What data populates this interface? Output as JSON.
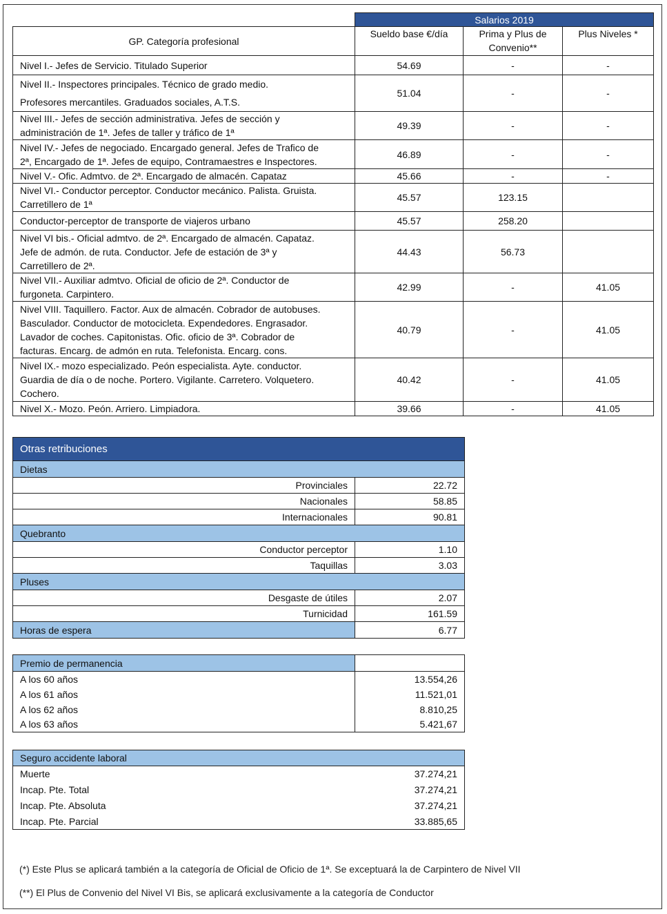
{
  "main_table": {
    "group_header": "Salarios 2019",
    "headers": [
      "GP. Categoría profesional",
      "Sueldo base €/día",
      "Prima y Plus de\nConvenio**",
      "Plus Niveles *"
    ],
    "rows": [
      {
        "categoria": "Nivel I.- Jefes de Servicio. Titulado Superior",
        "sueldo": "54.69",
        "prima": "-",
        "plus": "-"
      },
      {
        "categoria": "Nivel II.- Inspectores principales. Técnico de grado medio.\nProfesores mercantiles. Graduados sociales, A.T.S.",
        "sueldo": "51.04",
        "prima": "-",
        "plus": "-"
      },
      {
        "categoria": "Nivel III.- Jefes de sección administrativa. Jefes de sección y\nadministración de 1ª. Jefes de taller y tráfico de 1ª",
        "sueldo": "49.39",
        "prima": "-",
        "plus": "-"
      },
      {
        "categoria": "Nivel IV.- Jefes de negociado. Encargado general. Jefes de Trafico de\n2ª, Encargado de 1ª. Jefes de equipo, Contramaestres e Inspectores.",
        "sueldo": "46.89",
        "prima": "-",
        "plus": "-"
      },
      {
        "categoria": "Nivel V.- Ofic. Admtvo. de 2ª. Encargado de almacén. Capataz",
        "sueldo": "45.66",
        "prima": "-",
        "plus": "-"
      },
      {
        "categoria": "Nivel VI.- Conductor perceptor. Conductor mecánico. Palista. Gruista.\nCarretillero de 1ª",
        "sueldo": "45.57",
        "prima": "123.15",
        "plus": ""
      },
      {
        "categoria": "Conductor-perceptor de transporte de viajeros urbano",
        "sueldo": "45.57",
        "prima": "258.20",
        "plus": ""
      },
      {
        "categoria": "Nivel VI bis.- Oficial admtvo. de 2ª. Encargado de almacén. Capataz.\nJefe de admón. de ruta. Conductor. Jefe de estación de 3ª y\nCarretillero de 2ª.",
        "sueldo": "44.43",
        "prima": "56.73",
        "plus": ""
      },
      {
        "categoria": "Nivel VII.- Auxiliar admtvo. Oficial de oficio de 2ª. Conductor de\nfurgoneta. Carpintero.",
        "sueldo": "42.99",
        "prima": "-",
        "plus": "41.05"
      },
      {
        "categoria": "Nivel VIII. Taquillero. Factor. Aux de almacén. Cobrador de autobuses.\nBasculador. Conductor de motocicleta. Expendedores. Engrasador.\nLavador de coches. Capitonistas. Ofic. oficio de 3ª. Cobrador de\nfacturas. Encarg. de admón en ruta. Telefonista. Encarg. cons.",
        "sueldo": "40.79",
        "prima": "-",
        "plus": "41.05"
      },
      {
        "categoria": "Nivel IX.- mozo especializado. Peón especialista. Ayte. conductor.\nGuardia de día o de noche. Portero. Vigilante. Carretero. Volquetero.\nCochero.",
        "sueldo": "40.42",
        "prima": "-",
        "plus": "41.05"
      },
      {
        "categoria": "Nivel X.- Mozo. Peón. Arriero. Limpiadora.",
        "sueldo": "39.66",
        "prima": "-",
        "plus": "41.05"
      }
    ]
  },
  "otras": {
    "title": "Otras retribuciones",
    "sections": [
      {
        "name": "Dietas",
        "items": [
          {
            "label": "Provinciales",
            "value": "22.72"
          },
          {
            "label": "Nacionales",
            "value": "58.85"
          },
          {
            "label": "Internacionales",
            "value": "90.81"
          }
        ]
      },
      {
        "name": "Quebranto",
        "items": [
          {
            "label": "Conductor perceptor",
            "value": "1.10"
          },
          {
            "label": "Taquillas",
            "value": "3.03"
          }
        ]
      },
      {
        "name": "Pluses",
        "items": [
          {
            "label": "Desgaste de útiles",
            "value": "2.07"
          },
          {
            "label": "Turnicidad",
            "value": "161.59"
          }
        ]
      }
    ],
    "horas": {
      "label": "Horas de espera",
      "value": "6.77"
    }
  },
  "premio": {
    "title": "Premio de permanencia",
    "rows": [
      {
        "label": "A los 60 años",
        "value": "13.554,26"
      },
      {
        "label": "A los 61 años",
        "value": "11.521,01"
      },
      {
        "label": "A los 62 años",
        "value": "8.810,25"
      },
      {
        "label": "A los 63 años",
        "value": "5.421,67"
      }
    ]
  },
  "seguro": {
    "title": "Seguro accidente laboral",
    "rows": [
      {
        "label": "Muerte",
        "value": "37.274,21"
      },
      {
        "label": "Incap. Pte. Total",
        "value": "37.274,21"
      },
      {
        "label": "Incap. Pte. Absoluta",
        "value": "37.274,21"
      },
      {
        "label": "Incap. Pte. Parcial",
        "value": "33.885,65"
      }
    ]
  },
  "notes": [
    "(*) Este Plus se aplicará también a la categoría de Oficial de Oficio de 1ª. Se exceptuará la de Carpintero de Nivel VII",
    "(**) El Plus de Convenio del Nivel VI Bis, se aplicará exclusivamente a la categoría de Conductor"
  ]
}
